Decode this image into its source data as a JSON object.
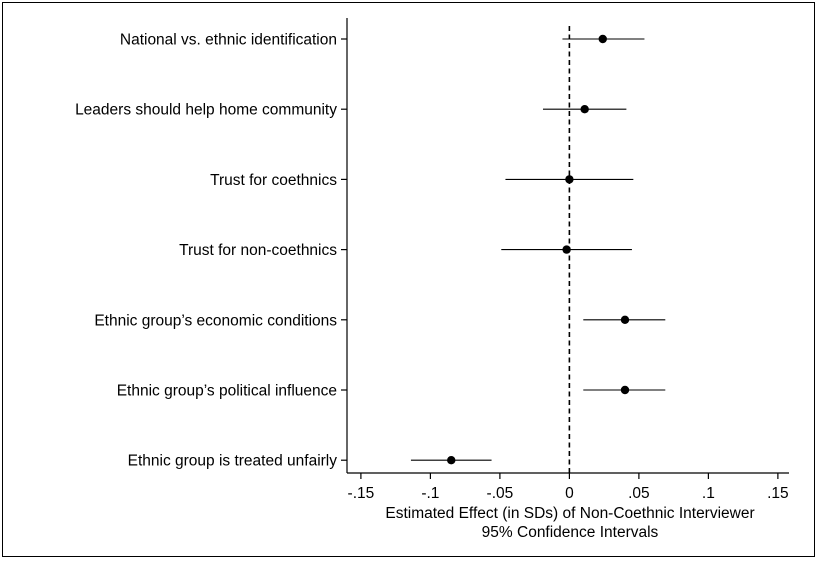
{
  "chart_data": {
    "type": "scatter",
    "subtype": "coefficient-plot",
    "xlabel": "Estimated Effect (in SDs) of Non-Coethnic Interviewer",
    "xlabel_line2": "95% Confidence Intervals",
    "xlim": [
      -0.16,
      0.158
    ],
    "xticks": [
      {
        "value": -0.15,
        "label": "-.15"
      },
      {
        "value": -0.1,
        "label": "-.1"
      },
      {
        "value": -0.05,
        "label": "-.05"
      },
      {
        "value": 0,
        "label": "0"
      },
      {
        "value": 0.05,
        "label": ".05"
      },
      {
        "value": 0.1,
        "label": ".1"
      },
      {
        "value": 0.15,
        "label": ".15"
      }
    ],
    "reference_line": {
      "x": 0,
      "style": "dashed"
    },
    "grid": false,
    "series": [
      {
        "values": [
          {
            "label": "National vs. ethnic identification",
            "estimate": 0.024,
            "ci": [
              -0.005,
              0.054
            ]
          },
          {
            "label": "Leaders should help home community",
            "estimate": 0.011,
            "ci": [
              -0.019,
              0.041
            ]
          },
          {
            "label": "Trust for coethnics",
            "estimate": 0.0,
            "ci": [
              -0.046,
              0.046
            ]
          },
          {
            "label": "Trust for non-coethnics",
            "estimate": -0.002,
            "ci": [
              -0.049,
              0.045
            ]
          },
          {
            "label": "Ethnic group’s economic conditions",
            "estimate": 0.04,
            "ci": [
              0.01,
              0.069
            ]
          },
          {
            "label": "Ethnic group’s political influence",
            "estimate": 0.04,
            "ci": [
              0.01,
              0.069
            ]
          },
          {
            "label": "Ethnic group is treated unfairly",
            "estimate": -0.085,
            "ci": [
              -0.114,
              -0.056
            ]
          }
        ]
      }
    ],
    "colors": {
      "marker": "#000000",
      "ci_line": "#000000",
      "axis": "#000000"
    }
  }
}
